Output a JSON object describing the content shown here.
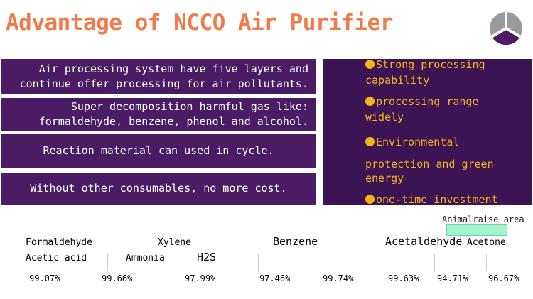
{
  "title": "Advantage of NCCO Air Purifier",
  "logo": {
    "icon": "tri-segment-circle-logo",
    "colors": [
      "#4b1b63",
      "#9a9a9a",
      "#ffffff"
    ]
  },
  "left_boxes": [
    "Air processing system have five layers and\ncontinue offer processing for air pollutants.",
    "Super decomposition harmful gas like:\nformaldehyde, benzene, phenol and alcohol.",
    "Reaction material can used in cycle.",
    "Without other consumables, no more cost."
  ],
  "advantages": [
    {
      "line1": "Strong processing",
      "line2": "capability"
    },
    {
      "line1": "processing range",
      "line2": "widely"
    },
    {
      "line1": "Environmental",
      "line2": "protection and green",
      "line3": "energy"
    },
    {
      "line1": "one-time investment"
    }
  ],
  "annotation": "Animalraise area",
  "gases": {
    "formaldehyde": "Formaldehyde",
    "xylene": "Xylene",
    "benzene": "Benzene",
    "acetaldehyde": "Acetaldehyde",
    "acetone": "Acetone",
    "acetic_acid": "Acetic acid",
    "ammonia": "Ammonia",
    "h2s": "H2S"
  },
  "percentages": [
    "99.07%",
    "99.66%",
    "97.99%",
    "97.46%",
    "99.74%",
    "99.63%",
    "94.71%",
    "96.67%"
  ],
  "colors": {
    "title": "#f07a4a",
    "box": "#4b1b63",
    "panel": "#3c1453",
    "advantage_text": "#f7b419",
    "annotation_fill": "#a6f0cf"
  }
}
